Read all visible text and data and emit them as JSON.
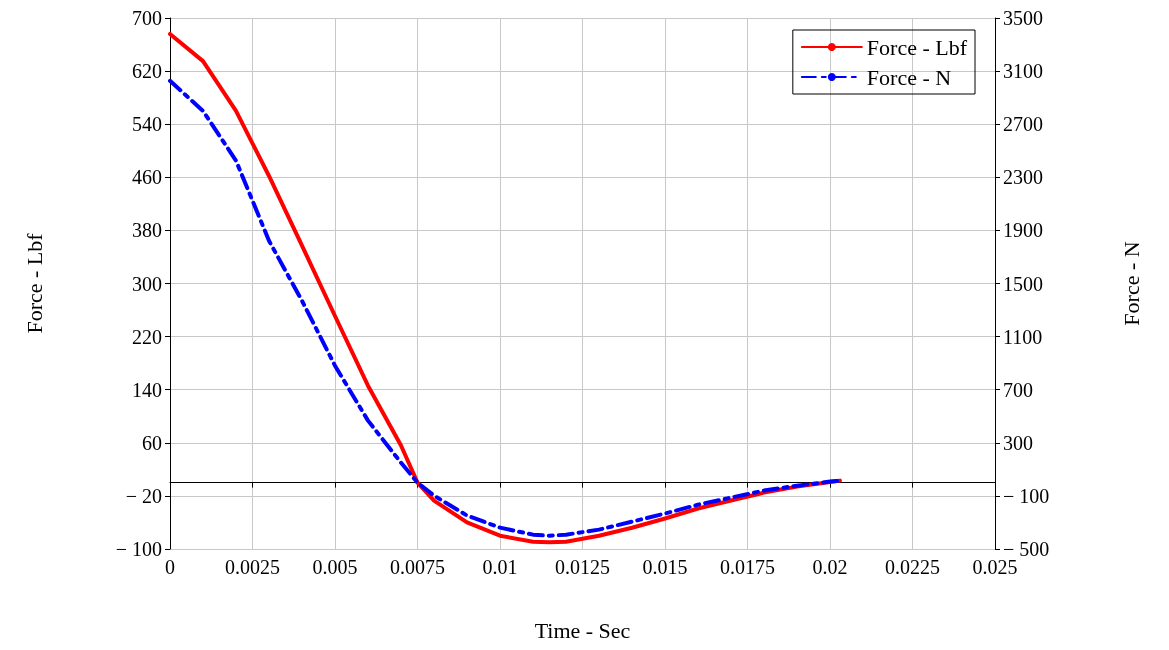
{
  "chart_data": {
    "type": "line",
    "xlabel": "Time - Sec",
    "ylabel": "Force - Lbf",
    "y2label": "Force - N",
    "x": [
      0,
      0.001,
      0.002,
      0.003,
      0.004,
      0.005,
      0.006,
      0.007,
      0.0075,
      0.008,
      0.009,
      0.01,
      0.011,
      0.0115,
      0.012,
      0.013,
      0.014,
      0.015,
      0.016,
      0.017,
      0.018,
      0.019,
      0.02,
      0.0203
    ],
    "series": [
      {
        "name": "Force - Lbf",
        "color": "#ff0000",
        "line_style": "solid",
        "values": [
          676,
          635,
          560,
          462,
          357,
          251,
          146,
          56,
          0,
          -27,
          -60,
          -80,
          -89,
          -90,
          -89,
          -80,
          -68,
          -54,
          -39,
          -27,
          -15,
          -6,
          1,
          3
        ]
      },
      {
        "name": "Force - N",
        "color": "#0000ff",
        "line_style": "dashed",
        "axis": "y2",
        "values": [
          3027,
          2800,
          2425,
          1822,
          1370,
          881,
          467,
          150,
          0,
          -98,
          -248,
          -339,
          -392,
          -400,
          -392,
          -354,
          -294,
          -233,
          -166,
          -113,
          -60,
          -23,
          8,
          15
        ]
      }
    ],
    "xlim": [
      0,
      0.025
    ],
    "xticks": [
      0,
      0.0025,
      0.005,
      0.0075,
      0.01,
      0.0125,
      0.015,
      0.0175,
      0.02,
      0.0225,
      0.025
    ],
    "ylim": [
      -100,
      700
    ],
    "yticks": [
      {
        "value": -100,
        "label": "− 100"
      },
      {
        "value": -20,
        "label": "− 20"
      },
      60,
      140,
      220,
      300,
      380,
      460,
      540,
      620,
      700
    ],
    "y2lim": [
      -500,
      3500
    ],
    "y2ticks": [
      {
        "value": -500,
        "label": "− 500"
      },
      {
        "value": -100,
        "label": "− 100"
      },
      300,
      700,
      1100,
      1500,
      1900,
      2300,
      2700,
      3100,
      3500
    ],
    "grid": true,
    "legend": "top right",
    "marker": "none"
  }
}
